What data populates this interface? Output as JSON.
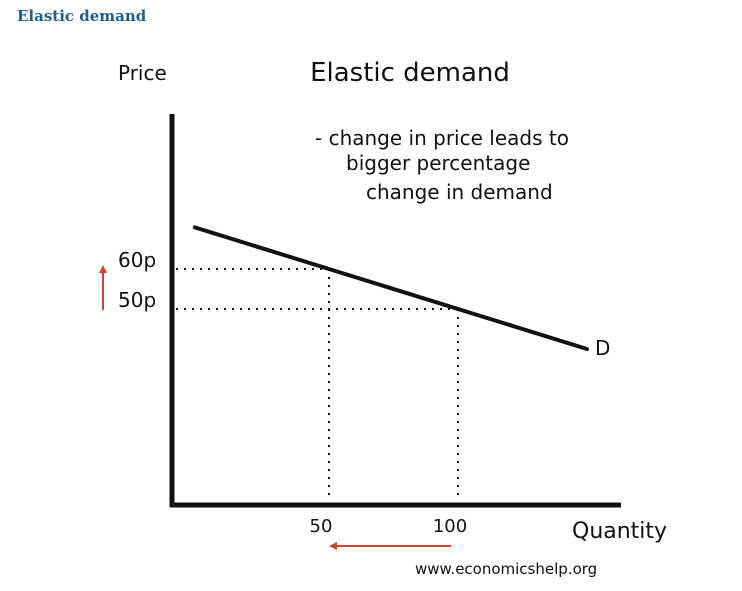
{
  "header": {
    "heading": "Elastic demand"
  },
  "footer": {
    "source": "www.economicshelp.org"
  },
  "colors": {
    "axis": "#111111",
    "curve": "#111111",
    "arrow": "#d2452b",
    "heading": "#1f5f8b"
  },
  "chart_data": {
    "type": "line",
    "title": "Elastic demand",
    "annotation_lines": [
      "- change in price leads to",
      "bigger percentage",
      "change in demand"
    ],
    "ylabel": "Price",
    "xlabel": "Quantity",
    "series": [
      {
        "name": "D",
        "x": [
          50,
          100
        ],
        "y": [
          60,
          50
        ]
      }
    ],
    "reference_points": [
      {
        "x": 50,
        "y": 60
      },
      {
        "x": 100,
        "y": 50
      }
    ],
    "x_ticks": [
      {
        "value": 50,
        "label": "50"
      },
      {
        "value": 100,
        "label": "100"
      }
    ],
    "y_ticks": [
      {
        "value": 60,
        "label": "60p"
      },
      {
        "value": 50,
        "label": "50p"
      }
    ],
    "indicators": [
      {
        "kind": "price-increase",
        "direction": "up"
      },
      {
        "kind": "quantity-decrease",
        "direction": "left"
      }
    ],
    "grid": false
  }
}
